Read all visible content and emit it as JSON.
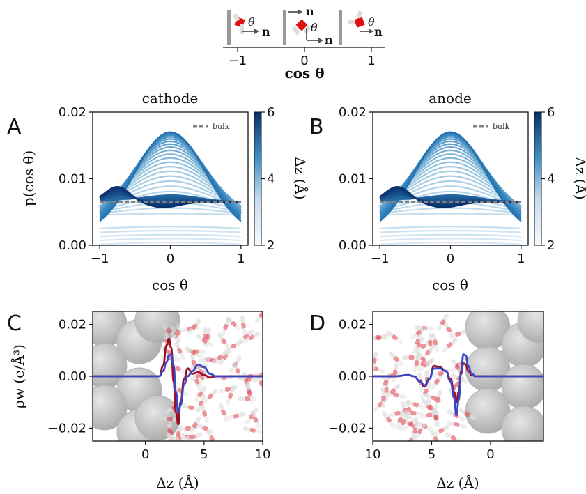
{
  "schematic": {
    "theta_symbol": "θ",
    "normal_symbol": "n",
    "axis_label": "cos θ",
    "ticks": [
      "−1",
      "0",
      "1"
    ]
  },
  "chart_data": [
    {
      "id": "A",
      "panel_label": "A",
      "title": "cathode",
      "type": "line",
      "xlabel": "cos θ",
      "ylabel": "p(cos θ)",
      "xlim": [
        -1.1,
        1.1
      ],
      "ylim": [
        0,
        0.02
      ],
      "xticks": [
        "−1",
        "0",
        "1"
      ],
      "yticks": [
        "0.00",
        "0.01",
        "0.02"
      ],
      "colorbar": {
        "label": "Δz (Å)",
        "range": [
          2,
          6
        ],
        "ticks": [
          "2",
          "4",
          "6"
        ]
      },
      "legend": {
        "entries": [
          "bulk"
        ],
        "placement": "top-right"
      },
      "bulk_value": 0.0065,
      "series_family": "distributions of cos θ for slabs from Δz = 2 Å (light) to 6 Å (dark); peak at cos θ = 0 reaching ≈0.017"
    },
    {
      "id": "B",
      "panel_label": "B",
      "title": "anode",
      "type": "line",
      "xlabel": "cos θ",
      "ylabel": "",
      "xlim": [
        -1.1,
        1.1
      ],
      "ylim": [
        0,
        0.02
      ],
      "xticks": [
        "−1",
        "0",
        "1"
      ],
      "yticks": [
        "0.00",
        "0.01",
        "0.02"
      ],
      "colorbar": {
        "label": "Δz (Å)",
        "range": [
          2,
          6
        ],
        "ticks": [
          "2",
          "4",
          "6"
        ]
      },
      "legend": {
        "entries": [
          "bulk"
        ],
        "placement": "top-right"
      },
      "bulk_value": 0.0065
    },
    {
      "id": "C",
      "panel_label": "C",
      "type": "line",
      "xlabel": "Δz (Å)",
      "ylabel": "ρw (e/Å³)",
      "xlim": [
        -4.5,
        10
      ],
      "ylim": [
        -0.025,
        0.025
      ],
      "xticks": [
        "0",
        "5",
        "10"
      ],
      "yticks": [
        "−0.02",
        "0.00",
        "0.02"
      ],
      "colors": {
        "red": "#9b1026",
        "blue": "#3d46c2"
      },
      "series": [
        {
          "color": "red",
          "x": [
            -4.5,
            1.2,
            1.5,
            1.8,
            2.0,
            2.2,
            2.4,
            2.6,
            2.8,
            3.0,
            3.3,
            3.6,
            4.0,
            4.5,
            5.0,
            5.5,
            6.0,
            6.5,
            7.0,
            8.0,
            10.0
          ],
          "y": [
            0,
            0.0,
            0.004,
            0.012,
            0.0145,
            0.011,
            -0.002,
            -0.014,
            -0.0185,
            -0.01,
            -0.001,
            0.003,
            0.001,
            0.0015,
            0.0005,
            -0.0005,
            0.0,
            0.0,
            0.0,
            0.0,
            0.0
          ]
        },
        {
          "color": "blue",
          "x": [
            -4.5,
            1.2,
            1.5,
            1.8,
            2.0,
            2.2,
            2.4,
            2.6,
            2.8,
            3.0,
            3.3,
            3.6,
            4.0,
            4.5,
            5.0,
            5.5,
            6.0,
            6.5,
            7.0,
            8.0,
            10.0
          ],
          "y": [
            0,
            0.0,
            0.002,
            0.0055,
            0.008,
            0.0085,
            0.004,
            -0.006,
            -0.014,
            -0.011,
            -0.003,
            0.0,
            0.002,
            0.0045,
            0.0035,
            0.001,
            0.0,
            0.0,
            0.0,
            0.0,
            0.0
          ]
        }
      ]
    },
    {
      "id": "D",
      "panel_label": "D",
      "type": "line",
      "xlabel": "Δz (Å)",
      "ylabel": "",
      "xlim": [
        10,
        -4.5
      ],
      "ylim": [
        -0.025,
        0.025
      ],
      "xticks": [
        "10",
        "5",
        "0"
      ],
      "yticks": [
        "−0.02",
        "0.00",
        "0.02"
      ],
      "colors": {
        "red": "#9b1026",
        "blue": "#3d46c2"
      },
      "series": [
        {
          "color": "red",
          "x": [
            10.0,
            8.0,
            7.0,
            6.5,
            6.0,
            5.6,
            5.2,
            4.8,
            4.3,
            3.8,
            3.4,
            3.1,
            2.9,
            2.7,
            2.5,
            2.3,
            2.1,
            1.9,
            1.6,
            1.3,
            -4.5
          ],
          "y": [
            0.0,
            0.0,
            0.0005,
            0.0,
            -0.002,
            -0.004,
            -0.001,
            0.004,
            0.0035,
            0.002,
            -0.001,
            -0.006,
            -0.01,
            -0.006,
            0.001,
            0.005,
            0.0045,
            0.002,
            0.0005,
            0.0,
            0.0
          ]
        },
        {
          "color": "blue",
          "x": [
            10.0,
            8.0,
            7.0,
            6.5,
            6.0,
            5.6,
            5.2,
            4.8,
            4.3,
            3.8,
            3.4,
            3.1,
            2.9,
            2.7,
            2.5,
            2.3,
            2.1,
            1.9,
            1.6,
            1.3,
            -4.5
          ],
          "y": [
            0.0,
            0.0,
            0.0005,
            0.0,
            -0.002,
            -0.0035,
            -0.001,
            0.003,
            0.003,
            0.002,
            -0.002,
            -0.008,
            -0.015,
            -0.009,
            0.002,
            0.0085,
            0.008,
            0.004,
            0.001,
            0.0,
            0.0
          ]
        }
      ]
    }
  ]
}
